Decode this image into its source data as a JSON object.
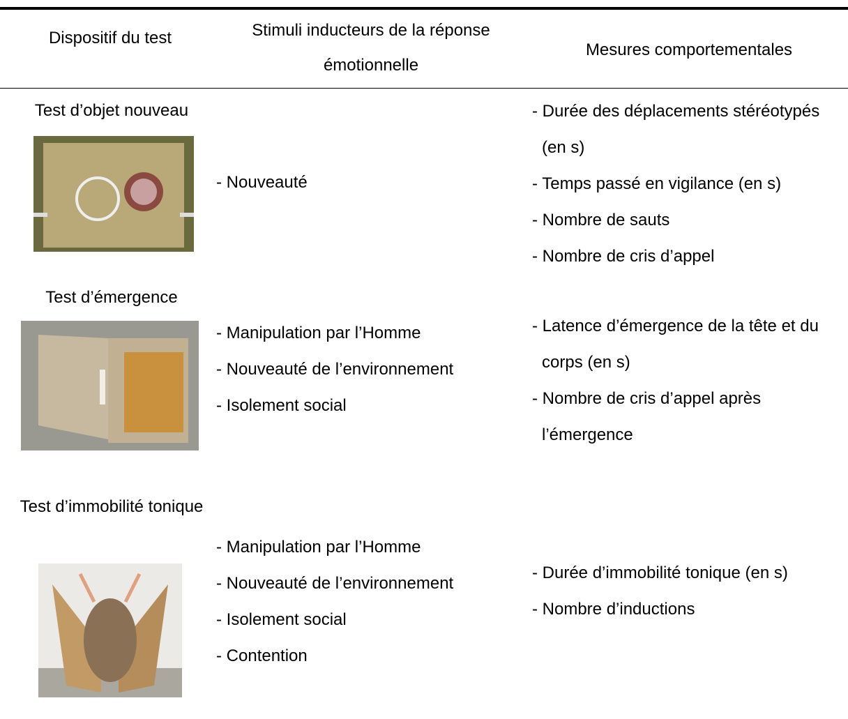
{
  "table": {
    "header": [
      "Dispositif du test",
      "Stimuli inducteurs de la réponse émotionnelle",
      "Mesures comportementales"
    ],
    "rows": [
      {
        "test": "Test d’objet nouveau",
        "stimuli": [
          "- Nouveauté"
        ],
        "measures": [
          "- Durée des déplacements stéréotypés (en s)",
          "- Temps passé en vigilance (en s)",
          "- Nombre de sauts",
          "- Nombre de cris d’appel"
        ]
      },
      {
        "test": "Test d’émergence",
        "stimuli": [
          "- Manipulation par l’Homme",
          "- Nouveauté de l’environnement",
          "- Isolement social"
        ],
        "measures": [
          "- Latence d’émergence de la tête et du corps (en s)",
          "- Nombre de cris d’appel après l’émergence"
        ]
      },
      {
        "test": "Test d’immobilité tonique",
        "stimuli": [
          "- Manipulation par l’Homme",
          "- Nouveauté de l’environnement",
          "- Isolement social",
          "- Contention"
        ],
        "measures": [
          "- Durée d’immobilité tonique (en s)",
          "- Nombre d’inductions"
        ]
      }
    ]
  }
}
